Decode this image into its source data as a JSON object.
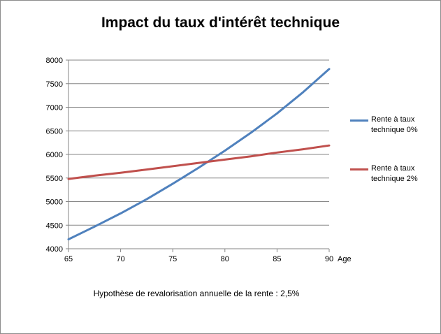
{
  "chart_data": {
    "type": "line",
    "title": "Impact  du taux d'intérêt technique",
    "xlabel": "Age",
    "ylabel": "",
    "x": [
      65,
      67.5,
      70,
      72.5,
      75,
      77.5,
      80,
      82.5,
      85,
      87.5,
      90
    ],
    "xlim": [
      65,
      90
    ],
    "ylim": [
      4000,
      8000
    ],
    "xticks": [
      65,
      70,
      75,
      80,
      85,
      90
    ],
    "yticks": [
      4000,
      4500,
      5000,
      5500,
      6000,
      6500,
      7000,
      7500,
      8000
    ],
    "grid": "horizontal",
    "legend_position": "right",
    "series": [
      {
        "name": "Rente à taux technique 0%",
        "color": "#4f81bd",
        "values": [
          4200,
          4470,
          4750,
          5050,
          5380,
          5720,
          6080,
          6460,
          6870,
          7320,
          7810
        ]
      },
      {
        "name": "Rente à taux technique 2%",
        "color": "#c0504d",
        "values": [
          5480,
          5550,
          5610,
          5680,
          5750,
          5820,
          5890,
          5960,
          6040,
          6110,
          6190
        ]
      }
    ],
    "note": "Hypothèse de revalorisation annuelle de la rente : 2,5%"
  }
}
